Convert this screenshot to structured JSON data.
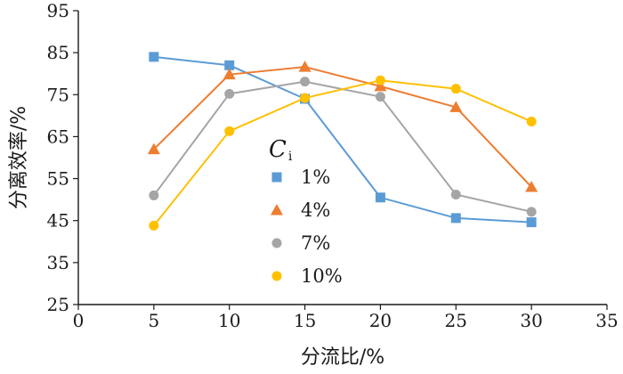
{
  "chart_data": {
    "type": "line",
    "xlabel": "分流比/%",
    "ylabel": "分离效率/%",
    "xlim": [
      0,
      35
    ],
    "ylim": [
      25,
      95
    ],
    "xticks": [
      0,
      5,
      10,
      15,
      20,
      25,
      30,
      35
    ],
    "yticks": [
      25,
      35,
      45,
      55,
      65,
      75,
      85,
      95
    ],
    "grid": false,
    "legend": {
      "title_main": "C",
      "title_sub": "i",
      "placement": "center"
    },
    "x": [
      5,
      10,
      15,
      20,
      25,
      30
    ],
    "series": [
      {
        "name": "1%",
        "marker": "square",
        "color": "#5b9bd5",
        "values": [
          84.0,
          82.0,
          74.0,
          50.5,
          45.6,
          44.6
        ]
      },
      {
        "name": "4%",
        "marker": "triangle",
        "color": "#ed7d31",
        "values": [
          62.0,
          79.8,
          81.6,
          77.0,
          72.0,
          53.0
        ]
      },
      {
        "name": "7%",
        "marker": "circle",
        "color": "#a5a5a5",
        "values": [
          51.0,
          75.2,
          78.1,
          74.5,
          51.2,
          47.1
        ]
      },
      {
        "name": "10%",
        "marker": "circle",
        "color": "#ffc000",
        "values": [
          43.8,
          66.3,
          74.2,
          78.4,
          76.4,
          68.6
        ]
      }
    ]
  }
}
